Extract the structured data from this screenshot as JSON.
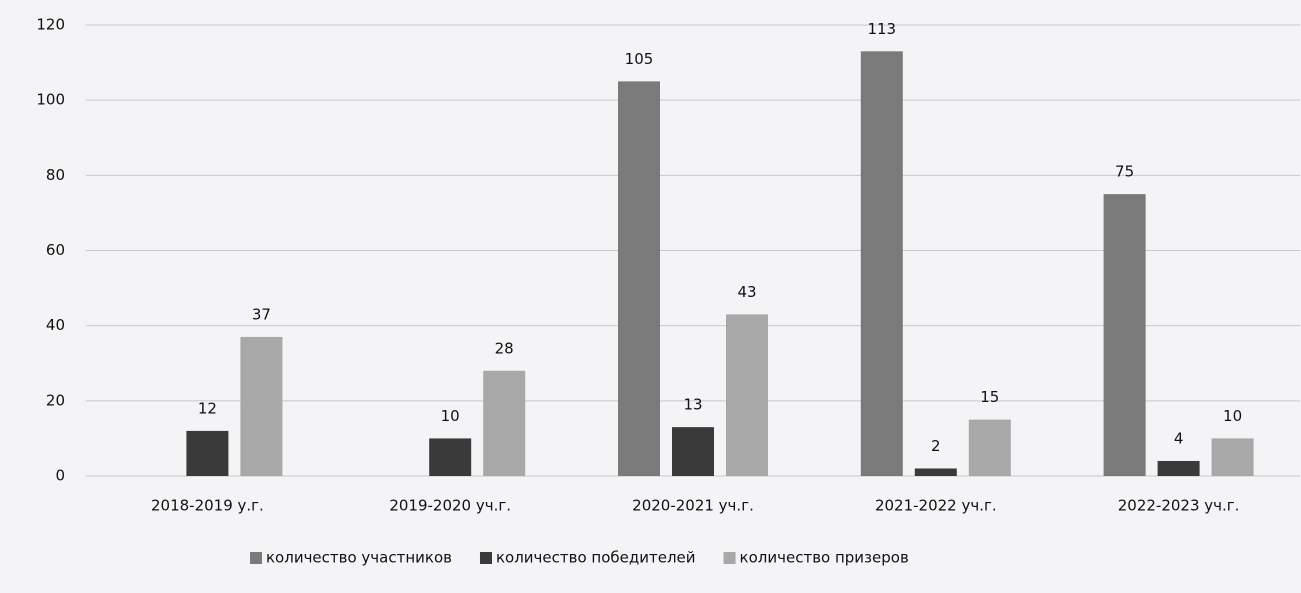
{
  "chart_data": {
    "type": "bar",
    "categories": [
      "2018-2019 у.г.",
      "2019-2020 уч.г.",
      "2020-2021 уч.г.",
      "2021-2022 уч.г.",
      "2022-2023 уч.г."
    ],
    "series": [
      {
        "name": "количество участников",
        "color": "#7a7a7a",
        "values": [
          null,
          null,
          105,
          113,
          75
        ]
      },
      {
        "name": "количество победителей",
        "color": "#3a3a3a",
        "values": [
          12,
          10,
          13,
          2,
          4
        ]
      },
      {
        "name": "количество призеров",
        "color": "#a8a8a8",
        "values": [
          37,
          28,
          43,
          15,
          10
        ]
      }
    ],
    "ylim": [
      0,
      120
    ],
    "yticks": [
      0,
      20,
      40,
      60,
      80,
      100,
      120
    ],
    "grid": true,
    "legend": "bottom"
  }
}
